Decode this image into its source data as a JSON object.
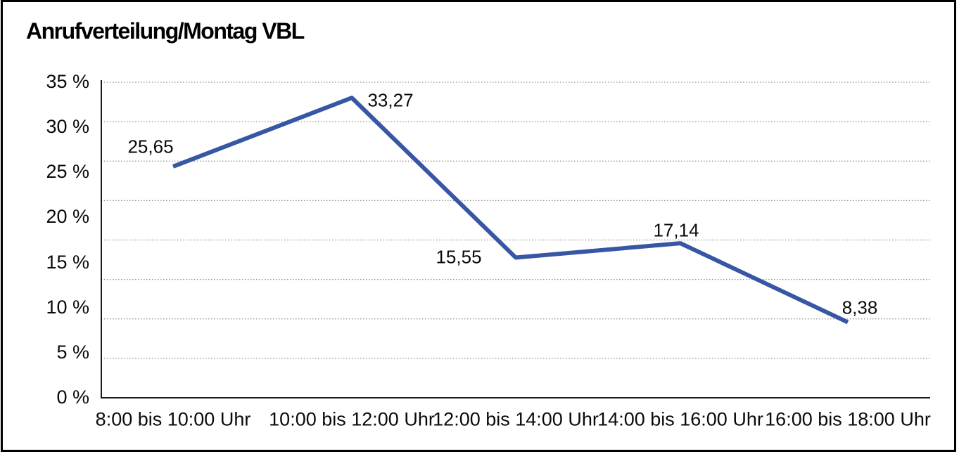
{
  "window": {
    "background_color": "#ffffff",
    "border_color": "#000000"
  },
  "chart_data": {
    "type": "line",
    "title": "Anrufverteilung/Montag VBL",
    "categories": [
      "8:00 bis 10:00 Uhr",
      "10:00 bis 12:00 Uhr",
      "12:00 bis 14:00 Uhr",
      "14:00 bis 16:00 Uhr",
      "16:00 bis 18:00 Uhr"
    ],
    "values": [
      25.65,
      33.27,
      15.55,
      17.14,
      8.38
    ],
    "point_labels": [
      "25,65",
      "33,27",
      "15,55",
      "17,14",
      "8,38"
    ],
    "yticks": [
      0,
      5,
      10,
      15,
      20,
      25,
      30,
      35
    ],
    "ytick_labels": [
      "0 %",
      "5 %",
      "10 %",
      "15 %",
      "20 %",
      "25 %",
      "30 %",
      "35 %"
    ],
    "ylim": [
      0,
      35
    ],
    "xlabel": "",
    "ylabel": "",
    "grid": "horizontal-dotted",
    "gridline_divisions": 8,
    "legend": "none",
    "line_color": "#3756A4",
    "gridline_color": "#8f8f8f",
    "axis_color": "#1a1a1a",
    "text_color": "#0a0a0a"
  }
}
